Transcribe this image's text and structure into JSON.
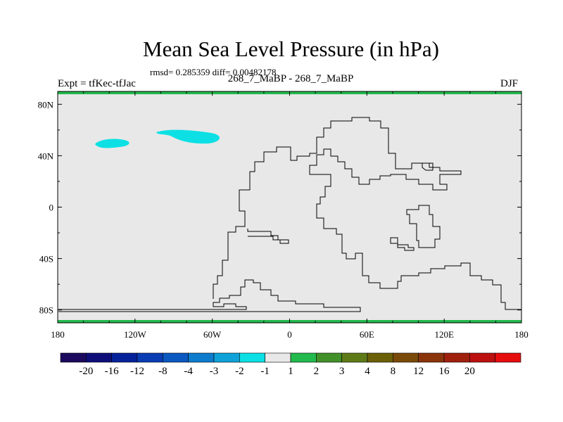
{
  "chart_data": {
    "type": "heatmap",
    "title": "Mean Sea Level Pressure (in hPa)",
    "subtitle": "rmsd= 0.285359 diff= 0.00482178",
    "left_label": "Expt = tfKec-tfJac",
    "center_label": "268_7_MaBP - 268_7_MaBP",
    "right_label": "DJF",
    "x_ticks": [
      "180",
      "120W",
      "60W",
      "0",
      "60E",
      "120E",
      "180"
    ],
    "y_ticks": [
      "80N",
      "40N",
      "0",
      "40S",
      "80S"
    ],
    "xlim": [
      -180,
      180
    ],
    "ylim": [
      -90,
      90
    ],
    "background_value_color": "#e8e8e8",
    "colorbar": {
      "colors": [
        "#1c0a5e",
        "#0e0e7a",
        "#06229a",
        "#0a3cb4",
        "#0b58c0",
        "#0d7ccc",
        "#0ea2d8",
        "#0ce0e4",
        "#e8e8e8",
        "#22b94d",
        "#42902a",
        "#5e7a16",
        "#6a6008",
        "#7a4a0a",
        "#8a340c",
        "#a0200e",
        "#bc1010",
        "#e60d0d"
      ],
      "labels": [
        "-20",
        "-16",
        "-12",
        "-8",
        "-4",
        "-3",
        "-2",
        "-1",
        "1",
        "2",
        "3",
        "4",
        "8",
        "12",
        "16",
        "20"
      ]
    },
    "highlighted_regions": [
      {
        "value_range": "-2 to -1",
        "color": "#0ce0e4",
        "center_lon": -143,
        "center_lat": 49
      },
      {
        "value_range": "-2 to -1",
        "color": "#0ce0e4",
        "center_lon": -90,
        "center_lat": 56
      }
    ],
    "edge_band_color": "#22b94d"
  }
}
